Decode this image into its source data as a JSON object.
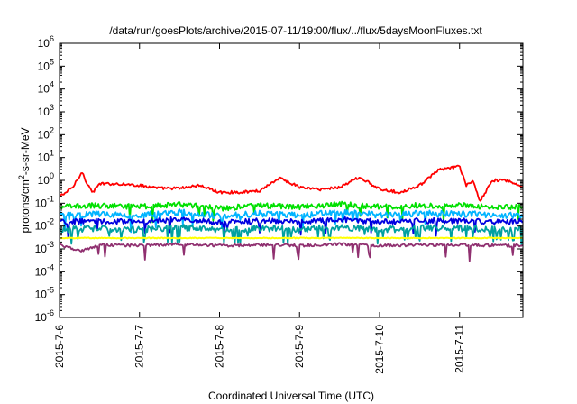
{
  "chart_data": {
    "type": "line",
    "title": "/data/run/goesPlots/archive/2015-07-11/19:00/flux/../flux/5daysMoonFluxes.txt",
    "xlabel": "Coordinated Universal Time (UTC)",
    "ylabel": "protons/cm²-s-sr-MeV",
    "ylabel_parts": {
      "pre": "protons/cm",
      "sup": "2",
      "post": "-s-sr-MeV"
    },
    "y_scale": "log",
    "ylim": [
      1e-06,
      1000000.0
    ],
    "y_ticks": [
      {
        "exp": "-6",
        "value": 1e-06
      },
      {
        "exp": "-5",
        "value": 1e-05
      },
      {
        "exp": "-4",
        "value": 0.0001
      },
      {
        "exp": "-3",
        "value": 0.001
      },
      {
        "exp": "-2",
        "value": 0.01
      },
      {
        "exp": "-1",
        "value": 0.1
      },
      {
        "exp": "0",
        "value": 1
      },
      {
        "exp": "1",
        "value": 10
      },
      {
        "exp": "2",
        "value": 100
      },
      {
        "exp": "3",
        "value": 1000
      },
      {
        "exp": "4",
        "value": 10000
      },
      {
        "exp": "5",
        "value": 100000
      },
      {
        "exp": "6",
        "value": 1000000
      }
    ],
    "y_tick_base": "10",
    "xlim": [
      "2015-07-06T00:00",
      "2015-07-11T19:00"
    ],
    "x_ticks": [
      "2015-7-6",
      "2015-7-7",
      "2015-7-8",
      "2015-7-9",
      "2015-7-10",
      "2015-7-11"
    ],
    "x_tick_dates": [
      "2015-07-06",
      "2015-07-07",
      "2015-07-08",
      "2015-07-09",
      "2015-07-10",
      "2015-07-11"
    ],
    "grid": false,
    "legend": "none",
    "series": [
      {
        "color": "#ff0000",
        "x": [
          "2015-07-06T00:00",
          "2015-07-06T02:00",
          "2015-07-06T04:00",
          "2015-07-06T06:00",
          "2015-07-06T07:00",
          "2015-07-06T08:00",
          "2015-07-06T10:00",
          "2015-07-06T12:00",
          "2015-07-06T18:00",
          "2015-07-07T00:00",
          "2015-07-07T06:00",
          "2015-07-07T12:00",
          "2015-07-07T18:00",
          "2015-07-08T00:00",
          "2015-07-08T06:00",
          "2015-07-08T12:00",
          "2015-07-08T18:00",
          "2015-07-09T00:00",
          "2015-07-09T06:00",
          "2015-07-09T12:00",
          "2015-07-09T18:00",
          "2015-07-10T00:00",
          "2015-07-10T06:00",
          "2015-07-10T12:00",
          "2015-07-10T18:00",
          "2015-07-11T00:00",
          "2015-07-11T02:00",
          "2015-07-11T04:00",
          "2015-07-11T06:00",
          "2015-07-11T10:00",
          "2015-07-11T14:00",
          "2015-07-11T19:00"
        ],
        "y": [
          0.2,
          0.3,
          0.5,
          1.5,
          2.5,
          0.8,
          0.3,
          0.7,
          0.7,
          0.6,
          0.45,
          0.45,
          0.6,
          0.3,
          0.3,
          0.35,
          1.3,
          0.5,
          0.4,
          0.5,
          1.4,
          0.4,
          0.3,
          0.6,
          3,
          4,
          0.6,
          1,
          0.12,
          1.0,
          1.0,
          0.5
        ]
      },
      {
        "color": "#00e000",
        "x": [
          "2015-07-06T00:00",
          "2015-07-06T12:00",
          "2015-07-07T00:00",
          "2015-07-07T12:00",
          "2015-07-08T00:00",
          "2015-07-08T12:00",
          "2015-07-09T00:00",
          "2015-07-09T12:00",
          "2015-07-10T00:00",
          "2015-07-10T12:00",
          "2015-07-11T00:00",
          "2015-07-11T12:00",
          "2015-07-11T19:00"
        ],
        "y": [
          0.07,
          0.08,
          0.07,
          0.09,
          0.06,
          0.08,
          0.07,
          0.09,
          0.07,
          0.08,
          0.08,
          0.07,
          0.07
        ]
      },
      {
        "color": "#00b4ff",
        "x": [
          "2015-07-06T00:00",
          "2015-07-06T12:00",
          "2015-07-07T00:00",
          "2015-07-07T12:00",
          "2015-07-08T00:00",
          "2015-07-08T12:00",
          "2015-07-09T00:00",
          "2015-07-09T12:00",
          "2015-07-10T00:00",
          "2015-07-10T12:00",
          "2015-07-11T00:00",
          "2015-07-11T12:00",
          "2015-07-11T19:00"
        ],
        "y": [
          0.03,
          0.035,
          0.03,
          0.04,
          0.028,
          0.035,
          0.03,
          0.04,
          0.03,
          0.035,
          0.035,
          0.03,
          0.03
        ]
      },
      {
        "color": "#0000e0",
        "x": [
          "2015-07-06T00:00",
          "2015-07-06T12:00",
          "2015-07-07T00:00",
          "2015-07-07T12:00",
          "2015-07-08T00:00",
          "2015-07-08T12:00",
          "2015-07-09T00:00",
          "2015-07-09T12:00",
          "2015-07-10T00:00",
          "2015-07-10T12:00",
          "2015-07-11T00:00",
          "2015-07-11T12:00",
          "2015-07-11T19:00"
        ],
        "y": [
          0.015,
          0.017,
          0.015,
          0.02,
          0.014,
          0.017,
          0.015,
          0.02,
          0.015,
          0.017,
          0.017,
          0.015,
          0.016
        ]
      },
      {
        "color": "#00a0a0",
        "x": [
          "2015-07-06T00:00",
          "2015-07-06T12:00",
          "2015-07-07T00:00",
          "2015-07-07T12:00",
          "2015-07-08T00:00",
          "2015-07-08T12:00",
          "2015-07-09T00:00",
          "2015-07-09T12:00",
          "2015-07-10T00:00",
          "2015-07-10T12:00",
          "2015-07-11T00:00",
          "2015-07-11T12:00",
          "2015-07-11T19:00"
        ],
        "y": [
          0.007,
          0.008,
          0.007,
          0.009,
          0.0065,
          0.008,
          0.007,
          0.009,
          0.007,
          0.008,
          0.008,
          0.007,
          0.0075
        ]
      },
      {
        "color": "#ffff00",
        "x": [
          "2015-07-06T00:00",
          "2015-07-07T00:00",
          "2015-07-08T00:00",
          "2015-07-09T00:00",
          "2015-07-10T00:00",
          "2015-07-11T00:00",
          "2015-07-11T19:00"
        ],
        "y": [
          0.003,
          0.003,
          0.003,
          0.003,
          0.003,
          0.003,
          0.003
        ]
      },
      {
        "color": "#903070",
        "x": [
          "2015-07-06T00:00",
          "2015-07-06T06:00",
          "2015-07-06T12:00",
          "2015-07-07T00:00",
          "2015-07-07T12:00",
          "2015-07-08T00:00",
          "2015-07-08T12:00",
          "2015-07-09T00:00",
          "2015-07-09T12:00",
          "2015-07-10T00:00",
          "2015-07-10T12:00",
          "2015-07-11T00:00",
          "2015-07-11T12:00",
          "2015-07-11T19:00"
        ],
        "y": [
          0.0015,
          0.0008,
          0.0015,
          0.0014,
          0.0016,
          0.0014,
          0.0015,
          0.0014,
          0.0016,
          0.0014,
          0.0015,
          0.0015,
          0.0014,
          0.0014
        ]
      }
    ]
  }
}
